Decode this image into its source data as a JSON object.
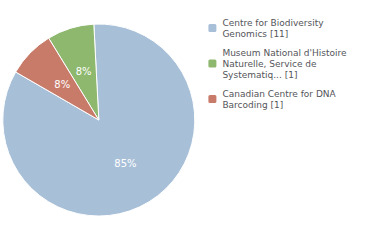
{
  "chart_data": {
    "type": "pie",
    "categories": [
      "Centre for Biodiversity\nGenomics [11]",
      "Museum National d'Histoire\nNaturelle, Service de\nSystematiq... [1]",
      "Canadian Centre for DNA\nBarcoding [1]"
    ],
    "values": [
      85,
      8,
      8
    ],
    "value_labels": [
      "85%",
      "8%",
      "8%"
    ],
    "colors": [
      "#a8bfd8",
      "#8db86e",
      "#c97b6a"
    ],
    "data_labels": true,
    "legend": "right"
  }
}
